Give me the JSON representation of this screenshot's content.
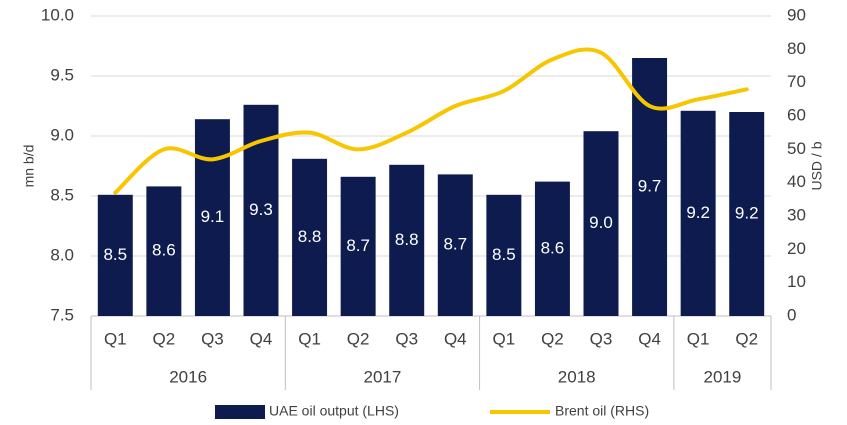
{
  "chart_data": {
    "type": "bar",
    "categories": [
      "Q1",
      "Q2",
      "Q3",
      "Q4",
      "Q1",
      "Q2",
      "Q3",
      "Q4",
      "Q1",
      "Q2",
      "Q3",
      "Q4",
      "Q1",
      "Q2"
    ],
    "groups": [
      {
        "label": "2016",
        "span": 4
      },
      {
        "label": "2017",
        "span": 4
      },
      {
        "label": "2018",
        "span": 4
      },
      {
        "label": "2019",
        "span": 2
      }
    ],
    "series": [
      {
        "name": "UAE oil output (LHS)",
        "type": "bar",
        "color": "#0d1b4f",
        "values": [
          8.51,
          8.58,
          9.14,
          9.26,
          8.81,
          8.66,
          8.76,
          8.68,
          8.51,
          8.62,
          9.04,
          9.65,
          9.21,
          9.2
        ],
        "value_labels": [
          "8.5",
          "8.6",
          "9.1",
          "9.3",
          "8.8",
          "8.7",
          "8.8",
          "8.7",
          "8.5",
          "8.6",
          "9.0",
          "9.7",
          "9.2",
          "9.2"
        ]
      },
      {
        "name": "Brent oil (RHS)",
        "type": "line",
        "axis": "y2",
        "color": "#f7c600",
        "values": [
          37,
          50,
          47,
          52.5,
          55,
          50,
          55,
          63,
          67.5,
          77,
          79,
          63,
          65,
          68
        ]
      }
    ],
    "ylabel": "mn b/d",
    "y2label": "USD / b",
    "ylim": [
      7.5,
      10
    ],
    "yticks": [
      7.5,
      {
        "value": 8,
        "label": "8.0"
      },
      8.5,
      {
        "value": 9,
        "label": "9.0"
      },
      9.5,
      {
        "value": 10,
        "label": "10.0"
      }
    ],
    "y2lim": [
      0,
      90
    ],
    "y2ticks": [
      0,
      10,
      20,
      30,
      40,
      50,
      60,
      70,
      80,
      90
    ],
    "grid": true,
    "legend": "bottom"
  }
}
